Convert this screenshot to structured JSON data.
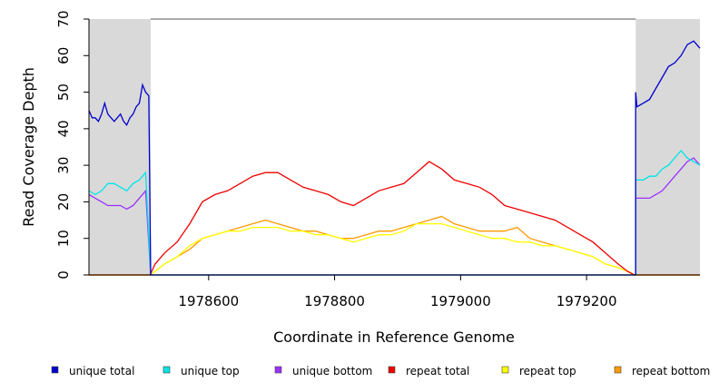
{
  "chart_data": {
    "type": "line",
    "title": "",
    "xlabel": "Coordinate in Reference Genome",
    "ylabel": "Read Coverage Depth",
    "xlim": [
      1978410,
      1979380
    ],
    "ylim": [
      0,
      70
    ],
    "x_ticks": [
      1978600,
      1978800,
      1979000,
      1979200
    ],
    "y_ticks": [
      0,
      10,
      20,
      30,
      40,
      50,
      60,
      70
    ],
    "shaded_regions": [
      [
        1978410,
        1978508
      ],
      [
        1979278,
        1979380
      ]
    ],
    "shade_color": "#d9d9d9",
    "legend_position": "bottom",
    "series": [
      {
        "name": "unique total",
        "color": "#0000cc",
        "x": [
          1978410,
          1978415,
          1978420,
          1978425,
          1978430,
          1978435,
          1978440,
          1978445,
          1978450,
          1978455,
          1978460,
          1978465,
          1978470,
          1978475,
          1978480,
          1978485,
          1978490,
          1978495,
          1978500,
          1978505,
          1978508,
          1978508,
          1979278,
          1979278,
          1979280,
          1979290,
          1979300,
          1979310,
          1979320,
          1979330,
          1979340,
          1979350,
          1979360,
          1979370,
          1979380
        ],
        "y": [
          45,
          43,
          43,
          42,
          44,
          47,
          44,
          43,
          42,
          43,
          44,
          42,
          41,
          43,
          44,
          46,
          47,
          52,
          50,
          49,
          0,
          0,
          0,
          50,
          46,
          47,
          48,
          51,
          54,
          57,
          58,
          60,
          63,
          64,
          62
        ]
      },
      {
        "name": "unique top",
        "color": "#00e5e5",
        "x": [
          1978410,
          1978420,
          1978430,
          1978440,
          1978450,
          1978460,
          1978470,
          1978480,
          1978490,
          1978500,
          1978508,
          1978508,
          1979278,
          1979278,
          1979290,
          1979300,
          1979310,
          1979320,
          1979330,
          1979340,
          1979350,
          1979360,
          1979370,
          1979380
        ],
        "y": [
          23,
          22,
          23,
          25,
          25,
          24,
          23,
          25,
          26,
          28,
          0,
          0,
          0,
          26,
          26,
          27,
          27,
          29,
          30,
          32,
          34,
          32,
          31,
          30
        ]
      },
      {
        "name": "unique bottom",
        "color": "#9b30ff",
        "x": [
          1978410,
          1978420,
          1978430,
          1978440,
          1978450,
          1978460,
          1978470,
          1978480,
          1978490,
          1978500,
          1978508,
          1978508,
          1979278,
          1979278,
          1979290,
          1979300,
          1979310,
          1979320,
          1979330,
          1979340,
          1979350,
          1979360,
          1979370,
          1979380
        ],
        "y": [
          22,
          21,
          20,
          19,
          19,
          19,
          18,
          19,
          21,
          23,
          0,
          0,
          0,
          21,
          21,
          21,
          22,
          23,
          25,
          27,
          29,
          31,
          32,
          30
        ]
      },
      {
        "name": "repeat total",
        "color": "#ee0000",
        "x": [
          1978410,
          1978507,
          1978515,
          1978530,
          1978550,
          1978570,
          1978590,
          1978610,
          1978630,
          1978650,
          1978670,
          1978690,
          1978710,
          1978730,
          1978750,
          1978770,
          1978790,
          1978810,
          1978830,
          1978850,
          1978870,
          1978890,
          1978910,
          1978930,
          1978950,
          1978970,
          1978990,
          1979010,
          1979030,
          1979050,
          1979070,
          1979090,
          1979110,
          1979130,
          1979150,
          1979170,
          1979190,
          1979210,
          1979230,
          1979250,
          1979265,
          1979276,
          1979380
        ],
        "y": [
          0,
          0,
          3,
          6,
          9,
          14,
          20,
          22,
          23,
          25,
          27,
          28,
          28,
          26,
          24,
          23,
          22,
          20,
          19,
          21,
          23,
          24,
          25,
          28,
          31,
          29,
          26,
          25,
          24,
          22,
          19,
          18,
          17,
          16,
          15,
          13,
          11,
          9,
          6,
          3,
          1,
          0,
          0
        ]
      },
      {
        "name": "repeat top",
        "color": "#ffff00",
        "x": [
          1978410,
          1978507,
          1978515,
          1978530,
          1978550,
          1978570,
          1978590,
          1978610,
          1978630,
          1978650,
          1978670,
          1978690,
          1978710,
          1978730,
          1978750,
          1978770,
          1978790,
          1978810,
          1978830,
          1978850,
          1978870,
          1978890,
          1978910,
          1978930,
          1978950,
          1978970,
          1978990,
          1979010,
          1979030,
          1979050,
          1979070,
          1979090,
          1979110,
          1979130,
          1979150,
          1979170,
          1979190,
          1979210,
          1979230,
          1979250,
          1979265,
          1979276,
          1979380
        ],
        "y": [
          0,
          0,
          1,
          3,
          5,
          8,
          10,
          11,
          12,
          12,
          13,
          13,
          13,
          12,
          12,
          11,
          11,
          10,
          9,
          10,
          11,
          11,
          12,
          14,
          14,
          14,
          13,
          12,
          11,
          10,
          10,
          9,
          9,
          8,
          8,
          7,
          6,
          5,
          3,
          2,
          1,
          0,
          0
        ]
      },
      {
        "name": "repeat bottom",
        "color": "#ff9900",
        "x": [
          1978410,
          1978507,
          1978515,
          1978530,
          1978550,
          1978570,
          1978590,
          1978610,
          1978630,
          1978650,
          1978670,
          1978690,
          1978710,
          1978730,
          1978750,
          1978770,
          1978790,
          1978810,
          1978830,
          1978850,
          1978870,
          1978890,
          1978910,
          1978930,
          1978950,
          1978970,
          1978990,
          1979010,
          1979030,
          1979050,
          1979070,
          1979090,
          1979110,
          1979130,
          1979150,
          1979170,
          1979190,
          1979210,
          1979230,
          1979250,
          1979265,
          1979276,
          1979380
        ],
        "y": [
          0,
          0,
          1,
          3,
          5,
          7,
          10,
          11,
          12,
          13,
          14,
          15,
          14,
          13,
          12,
          12,
          11,
          10,
          10,
          11,
          12,
          12,
          13,
          14,
          15,
          16,
          14,
          13,
          12,
          12,
          12,
          13,
          10,
          9,
          8,
          7,
          6,
          5,
          3,
          2,
          1,
          0,
          0
        ]
      }
    ]
  }
}
